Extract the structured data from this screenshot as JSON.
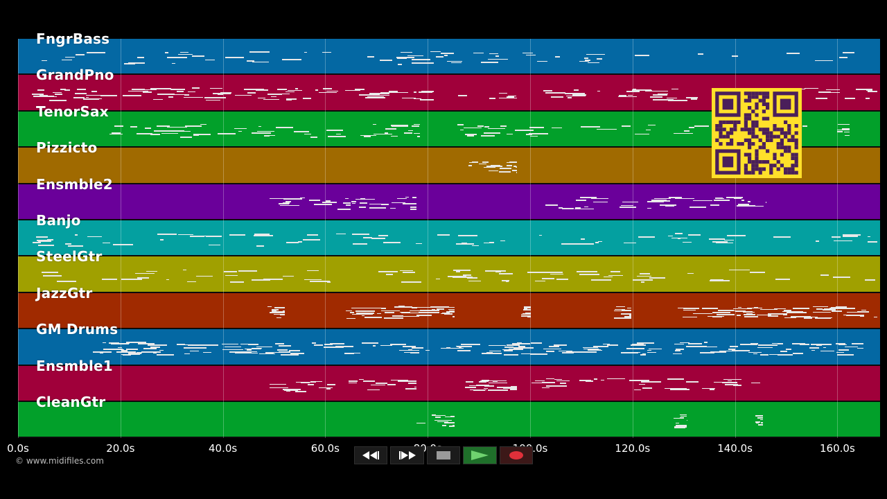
{
  "tracks": [
    {
      "name": "FngrBass",
      "color": "#0468a3"
    },
    {
      "name": "GrandPno",
      "color": "#a0003a"
    },
    {
      "name": "TenorSax",
      "color": "#02a02a"
    },
    {
      "name": "Pizzicto",
      "color": "#a06a00"
    },
    {
      "name": "Ensmble2",
      "color": "#6a009a"
    },
    {
      "name": "Banjo",
      "color": "#04a0a0"
    },
    {
      "name": "SteelGtr",
      "color": "#a0a000"
    },
    {
      "name": "JazzGtr",
      "color": "#a02a00"
    },
    {
      "name": "GM Drums",
      "color": "#0468a3"
    },
    {
      "name": "Ensmble1",
      "color": "#a0003a"
    },
    {
      "name": "CleanGtr",
      "color": "#02a02a"
    }
  ],
  "timeline": {
    "ticks": [
      "0.0s",
      "20.0s",
      "40.0s",
      "60.0s",
      "80.0s",
      "100.0s",
      "120.0s",
      "140.0s",
      "160.0s"
    ]
  },
  "copyright": "© www.midifiles.com",
  "transport": {
    "rewind_icon": "rewind-icon",
    "forward_icon": "fast-forward-icon",
    "stop_icon": "stop-icon",
    "play_icon": "play-icon",
    "record_icon": "record-icon"
  },
  "qr_code": {
    "color": "#ffe02a",
    "module_color": "#4a1f5a"
  }
}
